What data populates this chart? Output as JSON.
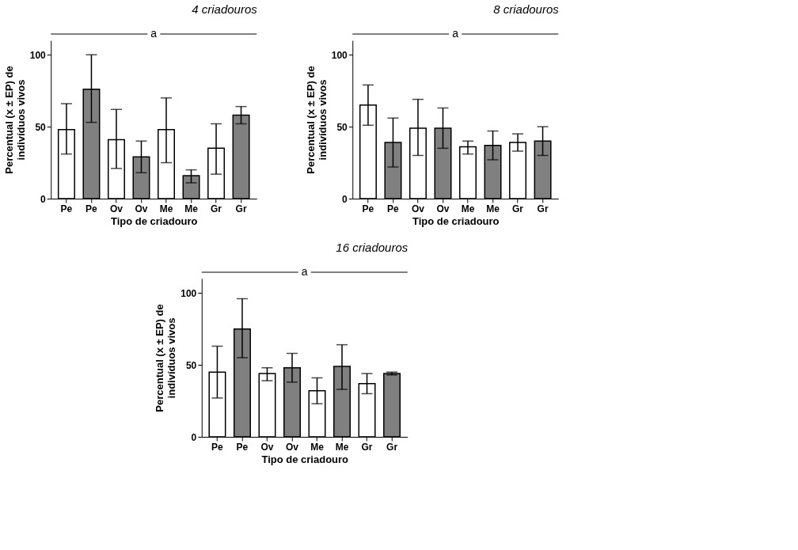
{
  "chart_data": [
    {
      "type": "bar",
      "title": "4 criadouros",
      "xlabel": "Tipo de criadouro",
      "ylabel": "Percentual (x ± EP) de\nindivíduos vivos",
      "categories": [
        "Pe",
        "Pe",
        "Ov",
        "Ov",
        "Me",
        "Me",
        "Gr",
        "Gr"
      ],
      "values": [
        48,
        76,
        41,
        29,
        48,
        16,
        35,
        58
      ],
      "colors": [
        "#ffffff",
        "#808080",
        "#ffffff",
        "#808080",
        "#ffffff",
        "#808080",
        "#ffffff",
        "#808080"
      ],
      "errors": [
        [
          31,
          66
        ],
        [
          53,
          100
        ],
        [
          21,
          62
        ],
        [
          18,
          40
        ],
        [
          25,
          70
        ],
        [
          11,
          20
        ],
        [
          17,
          52
        ],
        [
          52,
          64
        ]
      ],
      "ylim": [
        0,
        110
      ],
      "yticks": [
        0,
        50,
        100
      ],
      "annotations": [
        "a"
      ],
      "grid": false
    },
    {
      "type": "bar",
      "title": "8 criadouros",
      "xlabel": "Tipo de criadouro",
      "ylabel": "Percentual (x ± EP) de\nindivíduos vivos",
      "categories": [
        "Pe",
        "Pe",
        "Ov",
        "Ov",
        "Me",
        "Me",
        "Gr",
        "Gr"
      ],
      "values": [
        65,
        39,
        49,
        49,
        36,
        37,
        39,
        40
      ],
      "colors": [
        "#ffffff",
        "#808080",
        "#ffffff",
        "#808080",
        "#ffffff",
        "#808080",
        "#ffffff",
        "#808080"
      ],
      "errors": [
        [
          51,
          79
        ],
        [
          22,
          56
        ],
        [
          30,
          69
        ],
        [
          35,
          63
        ],
        [
          31,
          40
        ],
        [
          27,
          47
        ],
        [
          33,
          45
        ],
        [
          30,
          50
        ]
      ],
      "ylim": [
        0,
        110
      ],
      "yticks": [
        0,
        50,
        100
      ],
      "annotations": [
        "a"
      ],
      "grid": false
    },
    {
      "type": "bar",
      "title": "16 criadouros",
      "xlabel": "Tipo de criadouro",
      "ylabel": "Percentual (x ± EP) de\nindivíduos vivos",
      "categories": [
        "Pe",
        "Pe",
        "Ov",
        "Ov",
        "Me",
        "Me",
        "Gr",
        "Gr"
      ],
      "values": [
        45,
        75,
        44,
        48,
        32,
        49,
        37,
        44
      ],
      "colors": [
        "#ffffff",
        "#808080",
        "#ffffff",
        "#808080",
        "#ffffff",
        "#808080",
        "#ffffff",
        "#808080"
      ],
      "errors": [
        [
          27,
          63
        ],
        [
          55,
          96
        ],
        [
          39,
          48
        ],
        [
          38,
          58
        ],
        [
          23,
          41
        ],
        [
          33,
          64
        ],
        [
          30,
          44
        ],
        [
          43,
          45
        ]
      ],
      "ylim": [
        0,
        110
      ],
      "yticks": [
        0,
        50,
        100
      ],
      "annotations": [
        "a"
      ],
      "grid": false
    }
  ]
}
